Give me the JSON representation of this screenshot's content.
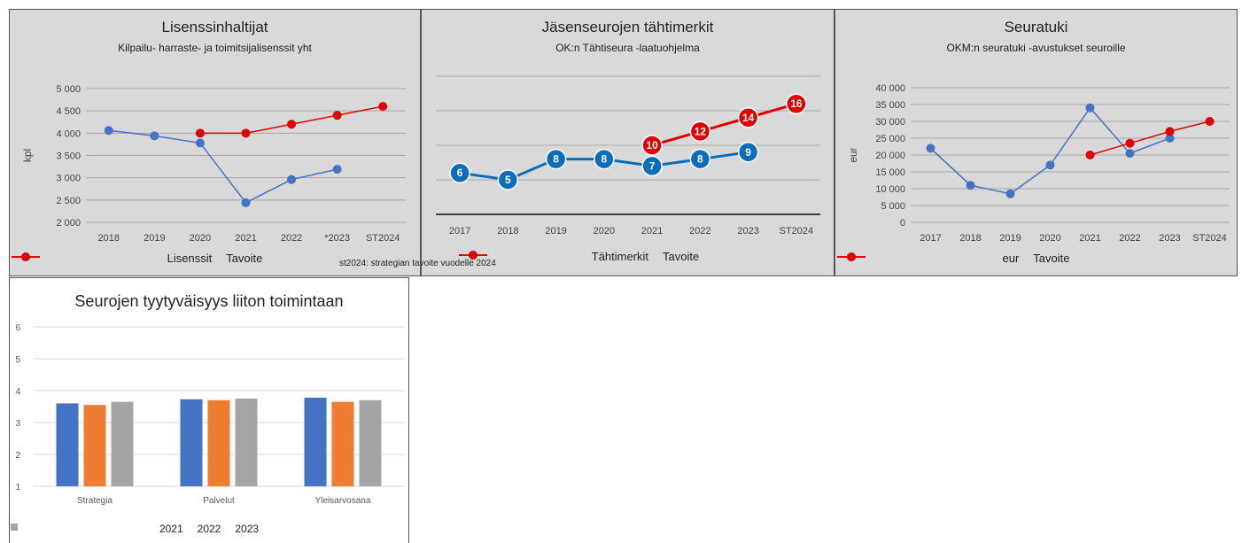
{
  "colors": {
    "blue": "#4472c4",
    "red": "#e00000",
    "darkblue": "#0a6ebd",
    "orange": "#ed7d31",
    "gray": "#a5a5a5"
  },
  "note": "st2024: strategian tavoite vuodelle 2024",
  "chart_data": [
    {
      "type": "line",
      "title": "Lisenssinhaltijat",
      "subtitle": "Kilpailu- harraste- ja toimitsijalisenssit yht",
      "xlabel": "",
      "ylabel": "kpl",
      "ylim": [
        2000,
        5000
      ],
      "yticks": [
        2000,
        2500,
        3000,
        3500,
        4000,
        4500,
        5000
      ],
      "ytick_labels": [
        "2 000",
        "2 500",
        "3 000",
        "3 500",
        "4 000",
        "4 500",
        "5 000"
      ],
      "categories": [
        "2018",
        "2019",
        "2020",
        "2021",
        "2022",
        "*2023",
        "ST2024"
      ],
      "grid": true,
      "legend": "bottom",
      "series": [
        {
          "name": "Lisenssit",
          "color": "#4472c4",
          "values": [
            4060,
            3940,
            3780,
            2440,
            2960,
            3190,
            null
          ]
        },
        {
          "name": "Tavoite",
          "color": "#e00000",
          "values": [
            null,
            null,
            4000,
            4000,
            4200,
            4400,
            4600
          ]
        }
      ]
    },
    {
      "type": "line",
      "title": "Jäsenseurojen tähtimerkit",
      "subtitle": "OK:n Tähtiseura -laatuohjelma",
      "xlabel": "",
      "ylabel": "",
      "ylim": [
        0,
        20
      ],
      "categories": [
        "2017",
        "2018",
        "2019",
        "2020",
        "2021",
        "2022",
        "2023",
        "ST2024"
      ],
      "grid": true,
      "legend": "bottom",
      "series": [
        {
          "name": "Tähtimerkit",
          "color": "#0a6ebd",
          "values": [
            6,
            5,
            8,
            8,
            7,
            8,
            9,
            null
          ]
        },
        {
          "name": "Tavoite",
          "color": "#e00000",
          "values": [
            null,
            null,
            null,
            null,
            10,
            12,
            14,
            16
          ]
        }
      ]
    },
    {
      "type": "line",
      "title": "Seuratuki",
      "subtitle": "OKM:n seuratuki -avustukset seuroille",
      "xlabel": "",
      "ylabel": "eur",
      "ylim": [
        0,
        40000
      ],
      "yticks": [
        0,
        5000,
        10000,
        15000,
        20000,
        25000,
        30000,
        35000,
        40000
      ],
      "ytick_labels": [
        "0",
        "5 000",
        "10 000",
        "15 000",
        "20 000",
        "25 000",
        "30 000",
        "35 000",
        "40 000"
      ],
      "categories": [
        "2017",
        "2018",
        "2019",
        "2020",
        "2021",
        "2022",
        "2023",
        "ST2024"
      ],
      "grid": true,
      "legend": "bottom",
      "series": [
        {
          "name": "eur",
          "color": "#4472c4",
          "values": [
            22000,
            11000,
            8500,
            17000,
            34000,
            20500,
            25000,
            null
          ]
        },
        {
          "name": "Tavoite",
          "color": "#e00000",
          "values": [
            null,
            null,
            null,
            null,
            20000,
            23500,
            27000,
            30000
          ]
        }
      ]
    },
    {
      "type": "bar",
      "title": "Seurojen tyytyväisyys liiton toimintaan",
      "xlabel": "",
      "ylabel": "",
      "ylim": [
        1,
        6
      ],
      "yticks": [
        1,
        2,
        3,
        4,
        5,
        6
      ],
      "ytick_labels": [
        "1",
        "2",
        "3",
        "4",
        "5",
        "6"
      ],
      "categories": [
        "Strategia",
        "Palvelut",
        "Yleisarvosana"
      ],
      "grid": true,
      "legend": "bottom",
      "series": [
        {
          "name": "2021",
          "color": "#4472c4",
          "values": [
            3.6,
            3.73,
            3.78
          ]
        },
        {
          "name": "2022",
          "color": "#ed7d31",
          "values": [
            3.55,
            3.7,
            3.65
          ]
        },
        {
          "name": "2023",
          "color": "#a5a5a5",
          "values": [
            3.65,
            3.75,
            3.7
          ]
        }
      ]
    }
  ]
}
